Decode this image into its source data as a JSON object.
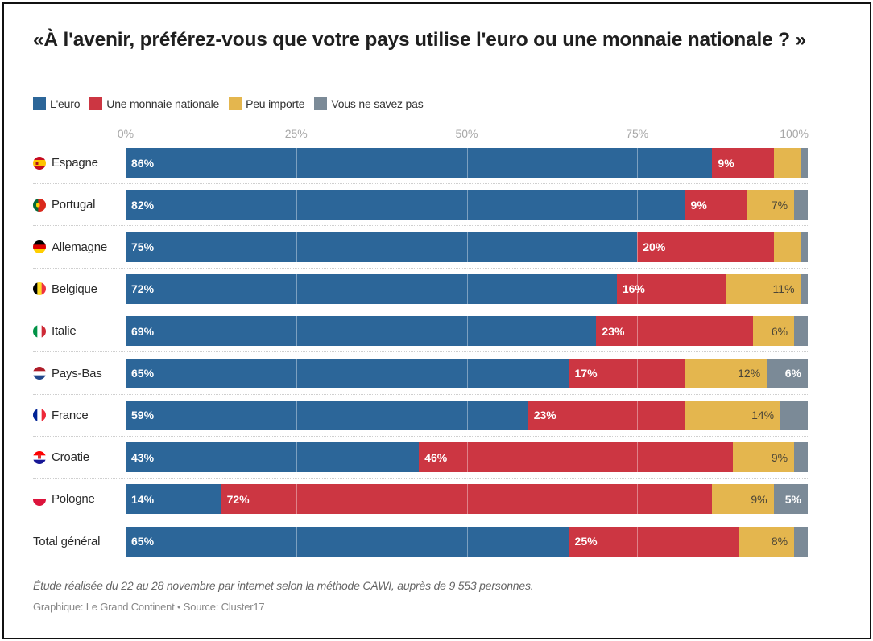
{
  "chart_data": {
    "type": "bar",
    "orientation": "horizontal",
    "stacked": true,
    "title": "«À l'avenir, préférez-vous que votre pays utilise l'euro ou une monnaie nationale ? »",
    "xlabel": "",
    "ylabel": "",
    "xlim": [
      0,
      100
    ],
    "x_ticks": [
      "0%",
      "25%",
      "50%",
      "75%",
      "100%"
    ],
    "x_tick_values": [
      0,
      25,
      50,
      75,
      100
    ],
    "grid": true,
    "legend_position": "top-left",
    "categories": [
      "Espagne",
      "Portugal",
      "Allemagne",
      "Belgique",
      "Italie",
      "Pays-Bas",
      "France",
      "Croatie",
      "Pologne",
      "Total général"
    ],
    "category_flags": [
      "spain-flag-icon",
      "portugal-flag-icon",
      "germany-flag-icon",
      "belgium-flag-icon",
      "italy-flag-icon",
      "netherlands-flag-icon",
      "france-flag-icon",
      "croatia-flag-icon",
      "poland-flag-icon",
      ""
    ],
    "series": [
      {
        "name": "L'euro",
        "color": "#2c6699",
        "label_style": "light",
        "label_align": "left",
        "values": [
          86,
          82,
          75,
          72,
          69,
          65,
          59,
          43,
          14,
          65
        ]
      },
      {
        "name": "Une monnaie nationale",
        "color": "#cc3642",
        "label_style": "light",
        "label_align": "left",
        "values": [
          9,
          9,
          20,
          16,
          23,
          17,
          23,
          46,
          72,
          25
        ]
      },
      {
        "name": "Peu importe",
        "color": "#e4b64e",
        "label_style": "dark",
        "label_align": "right",
        "values": [
          4,
          7,
          4,
          11,
          6,
          12,
          14,
          9,
          9,
          8
        ]
      },
      {
        "name": "Vous ne savez pas",
        "color": "#7b8a97",
        "label_style": "light",
        "label_align": "right",
        "values": [
          1,
          2,
          1,
          1,
          2,
          6,
          4,
          2,
          5,
          2
        ]
      }
    ],
    "label_min_value": 5,
    "value_suffix": "%"
  },
  "footer": {
    "note": "Étude réalisée du 22 au 28 novembre par internet selon la méthode CAWI, auprès de 9 553 personnes.",
    "source": "Graphique: Le Grand Continent  • Source: Cluster17"
  }
}
